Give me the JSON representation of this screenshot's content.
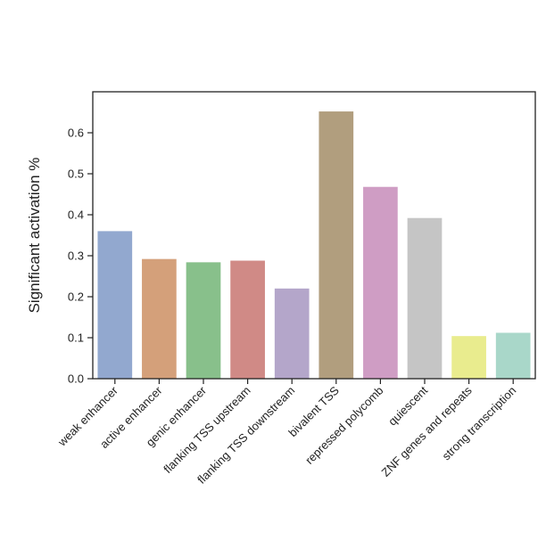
{
  "chart_data": {
    "type": "bar",
    "title": "",
    "xlabel": "",
    "ylabel": "Significant activation %",
    "ylim": [
      0,
      0.7
    ],
    "yticks": [
      0.0,
      0.1,
      0.2,
      0.3,
      0.4,
      0.5,
      0.6
    ],
    "ytick_labels": [
      "0.0",
      "0.1",
      "0.2",
      "0.3",
      "0.4",
      "0.5",
      "0.6"
    ],
    "grid": false,
    "categories": [
      "weak enhancer",
      "active enhancer",
      "genic enhancer",
      "flanking TSS upstream",
      "flanking TSS downstream",
      "bivalent TSS",
      "repressed polycomb",
      "quiescent",
      "ZNF genes and repeats",
      "strong transcription"
    ],
    "values": [
      0.36,
      0.292,
      0.284,
      0.288,
      0.22,
      0.652,
      0.468,
      0.392,
      0.104,
      0.112
    ],
    "colors": [
      "#92a8cf",
      "#d4a07a",
      "#88c08b",
      "#d08a86",
      "#b4a6ca",
      "#b19e7e",
      "#cf9dc4",
      "#c5c5c5",
      "#e9ec8e",
      "#a9d7c9"
    ]
  }
}
